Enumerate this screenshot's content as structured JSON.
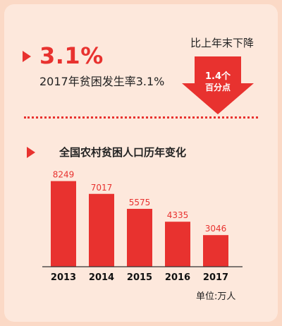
{
  "headline": {
    "rate": "3.1%",
    "caption": "2017年贫困发生率3.1%"
  },
  "decline": {
    "title": "比上年末下降",
    "amount": "1.4个",
    "unit": "百分点"
  },
  "colors": {
    "accent": "#e8322f",
    "background": "#fde8dc"
  },
  "chart_data": {
    "type": "bar",
    "title": "全国农村贫困人口历年变化",
    "categories": [
      "2013",
      "2014",
      "2015",
      "2016",
      "2017"
    ],
    "values": [
      8249,
      7017,
      5575,
      4335,
      3046
    ],
    "data_labels": [
      "8249",
      "7017",
      "5575",
      "4335",
      "3046"
    ],
    "unit_label": "单位:万人",
    "ylim": [
      0,
      8700
    ],
    "grid": false,
    "legend": "none"
  }
}
